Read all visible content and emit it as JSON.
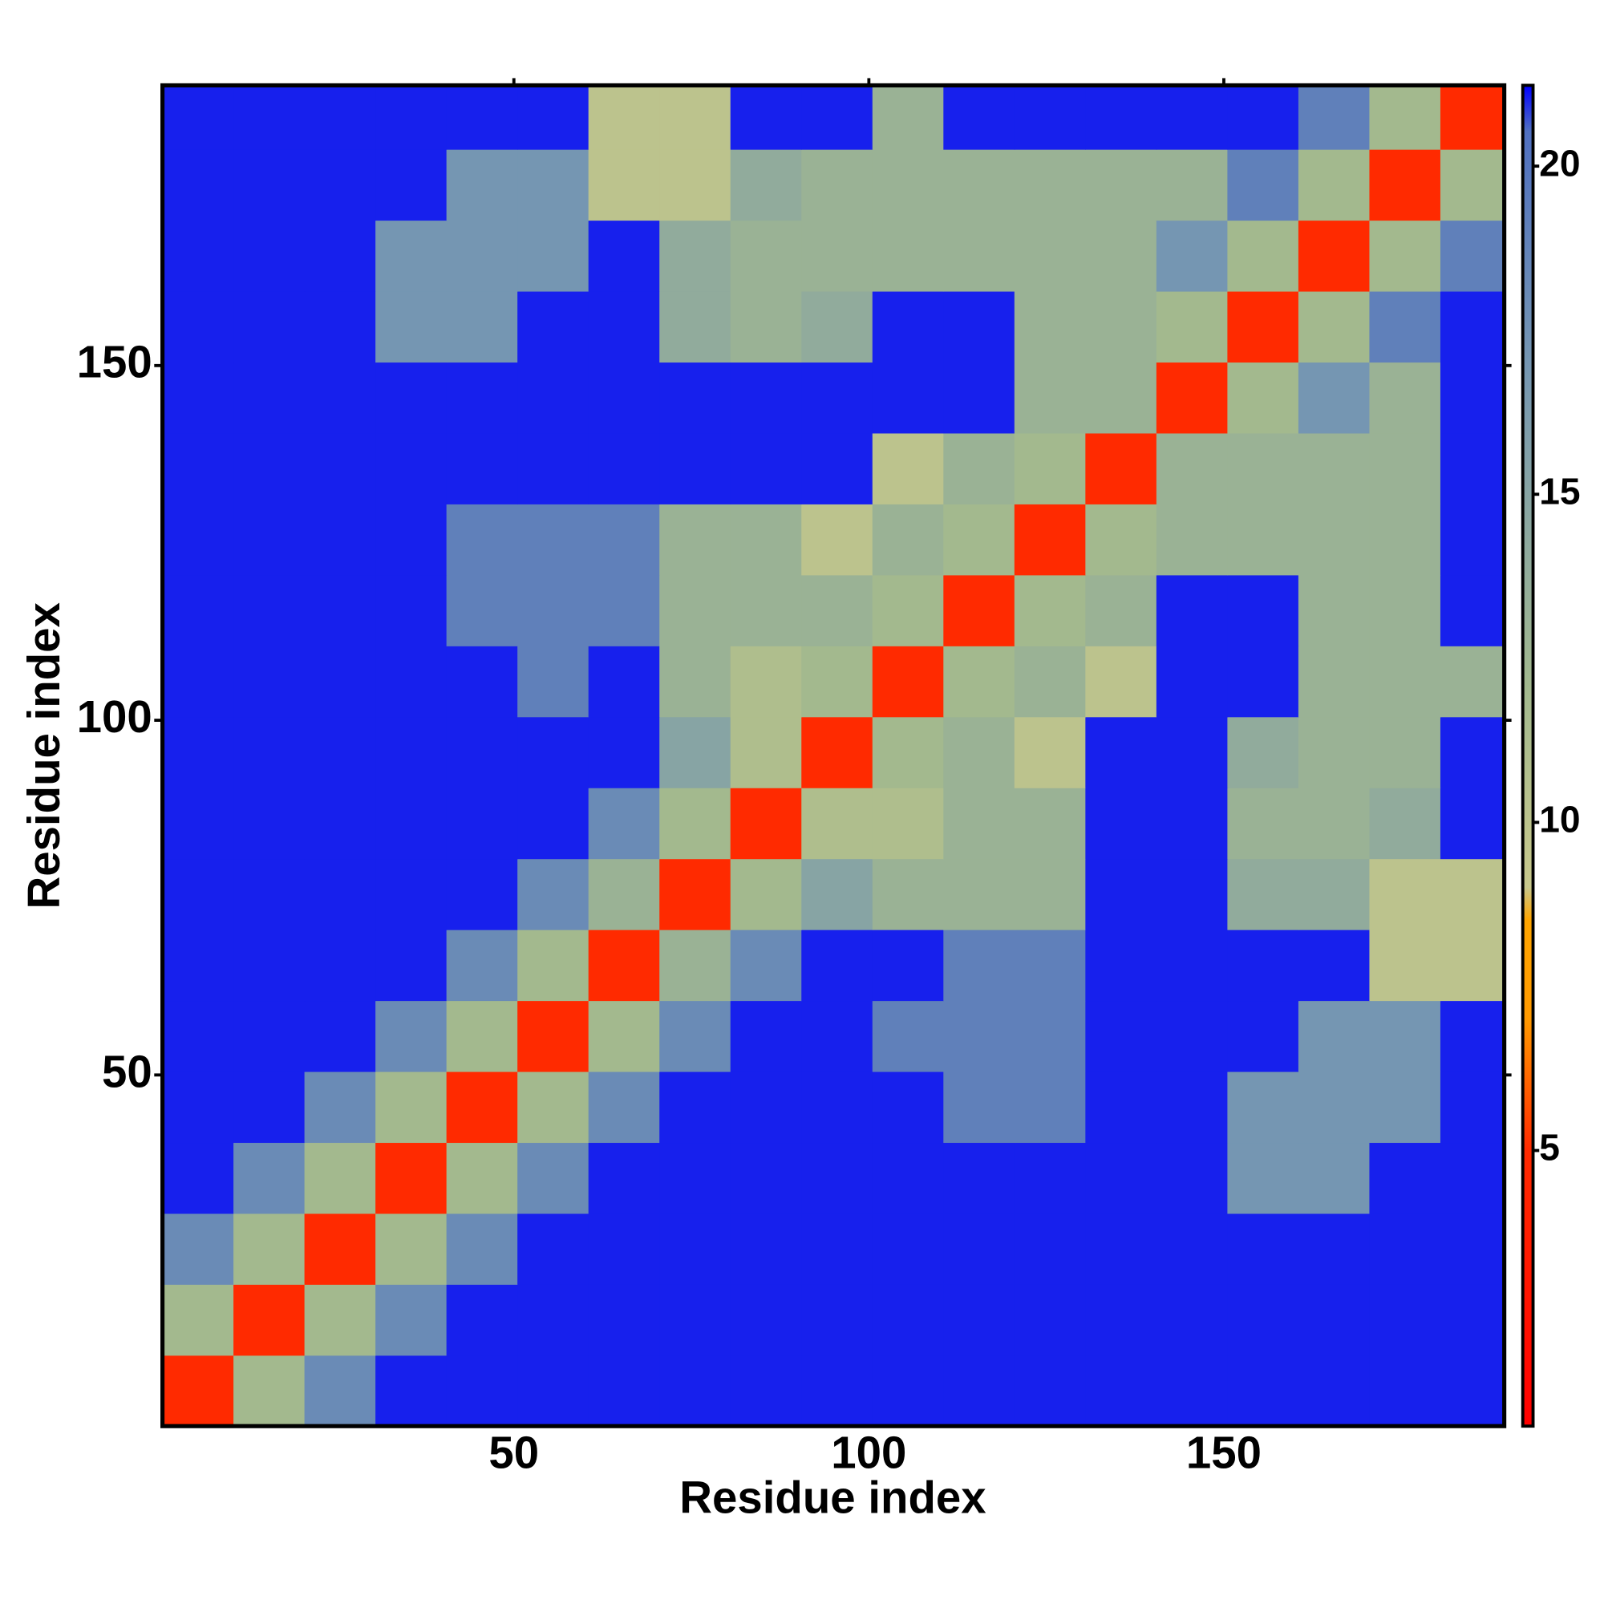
{
  "chart_data": {
    "type": "heatmap",
    "x_label": "Residue index",
    "y_label": "Residue index",
    "xlim": [
      0.5,
      189.5
    ],
    "ylim": [
      0.5,
      189.5
    ],
    "xticks": [
      50,
      100,
      150
    ],
    "yticks": [
      50,
      100,
      150
    ],
    "x_edges": [
      0.5,
      10.5,
      20.5,
      30.5,
      40.5,
      50.5,
      60.5,
      70.5,
      80.5,
      90.5,
      100.5,
      110.5,
      120.5,
      130.5,
      140.5,
      150.5,
      160.5,
      170.5,
      180.5,
      189.5
    ],
    "y_edges": [
      0.5,
      10.5,
      20.5,
      30.5,
      40.5,
      50.5,
      60.5,
      70.5,
      80.5,
      90.5,
      100.5,
      110.5,
      120.5,
      130.5,
      140.5,
      150.5,
      160.5,
      170.5,
      180.5,
      189.5
    ],
    "z": [
      [
        5,
        12,
        18,
        21,
        21,
        21,
        21,
        21,
        21,
        21,
        21,
        21,
        21,
        21,
        21,
        21,
        21,
        21,
        21
      ],
      [
        12,
        5,
        12,
        18,
        21,
        21,
        21,
        21,
        21,
        21,
        21,
        21,
        21,
        21,
        21,
        21,
        21,
        21,
        21
      ],
      [
        18,
        12,
        5,
        12,
        18,
        21,
        21,
        21,
        21,
        21,
        21,
        21,
        21,
        21,
        21,
        21,
        21,
        21,
        21
      ],
      [
        21,
        18,
        12,
        5,
        12,
        18,
        21,
        21,
        21,
        21,
        21,
        21,
        21,
        21,
        21,
        17,
        17,
        21,
        21
      ],
      [
        21,
        21,
        18,
        12,
        5,
        12,
        18,
        21,
        21,
        21,
        21,
        19,
        19,
        21,
        21,
        17,
        17,
        17,
        21
      ],
      [
        21,
        21,
        21,
        18,
        12,
        5,
        12,
        18,
        21,
        21,
        19,
        19,
        19,
        21,
        21,
        21,
        17,
        17,
        21
      ],
      [
        21,
        21,
        21,
        21,
        18,
        12,
        5,
        13,
        18,
        21,
        21,
        19,
        19,
        21,
        21,
        21,
        21,
        10,
        10
      ],
      [
        21,
        21,
        21,
        21,
        21,
        18,
        13,
        5,
        12,
        15,
        13,
        13,
        13,
        21,
        21,
        14,
        14,
        10,
        10
      ],
      [
        21,
        21,
        21,
        21,
        21,
        21,
        18,
        12,
        5,
        11,
        11,
        13,
        13,
        21,
        21,
        13,
        13,
        14,
        21
      ],
      [
        21,
        21,
        21,
        21,
        21,
        21,
        21,
        15,
        11,
        5,
        12,
        13,
        10,
        21,
        21,
        14,
        13,
        13,
        21
      ],
      [
        21,
        21,
        21,
        21,
        21,
        19,
        21,
        13,
        11,
        12,
        5,
        12,
        13,
        10,
        21,
        21,
        13,
        13,
        13
      ],
      [
        21,
        21,
        21,
        21,
        19,
        19,
        19,
        13,
        13,
        13,
        12,
        5,
        12,
        13,
        21,
        21,
        13,
        13,
        21
      ],
      [
        21,
        21,
        21,
        21,
        19,
        19,
        19,
        13,
        13,
        10,
        13,
        12,
        5,
        12,
        13,
        13,
        13,
        13,
        21
      ],
      [
        21,
        21,
        21,
        21,
        21,
        21,
        21,
        21,
        21,
        21,
        10,
        13,
        12,
        5,
        13,
        13,
        13,
        13,
        21
      ],
      [
        21,
        21,
        21,
        21,
        21,
        21,
        21,
        21,
        21,
        21,
        21,
        21,
        13,
        13,
        5,
        12,
        17,
        13,
        21
      ],
      [
        21,
        21,
        21,
        17,
        17,
        21,
        21,
        14,
        13,
        14,
        21,
        21,
        13,
        13,
        12,
        5,
        12,
        19,
        21
      ],
      [
        21,
        21,
        21,
        17,
        17,
        17,
        21,
        14,
        13,
        13,
        13,
        13,
        13,
        13,
        17,
        12,
        5,
        12,
        19
      ],
      [
        21,
        21,
        21,
        21,
        17,
        17,
        10,
        10,
        14,
        13,
        13,
        13,
        13,
        13,
        13,
        19,
        12,
        5,
        12
      ],
      [
        21,
        21,
        21,
        21,
        21,
        21,
        10,
        10,
        21,
        21,
        13,
        21,
        21,
        21,
        21,
        21,
        19,
        12,
        5
      ]
    ],
    "zlim": [
      0.8,
      21.2
    ],
    "zticks": [
      5,
      10,
      15,
      20
    ],
    "colorscale": [
      [
        0.8,
        "#ff0000"
      ],
      [
        5,
        "#ff2a00"
      ],
      [
        7,
        "#ff9900"
      ],
      [
        8.5,
        "#ffa500"
      ],
      [
        9,
        "#c8c88c"
      ],
      [
        12,
        "#a3b98e"
      ],
      [
        17,
        "#7596b2"
      ],
      [
        20.5,
        "#5070c0"
      ],
      [
        21.2,
        "#0000ff"
      ]
    ]
  }
}
